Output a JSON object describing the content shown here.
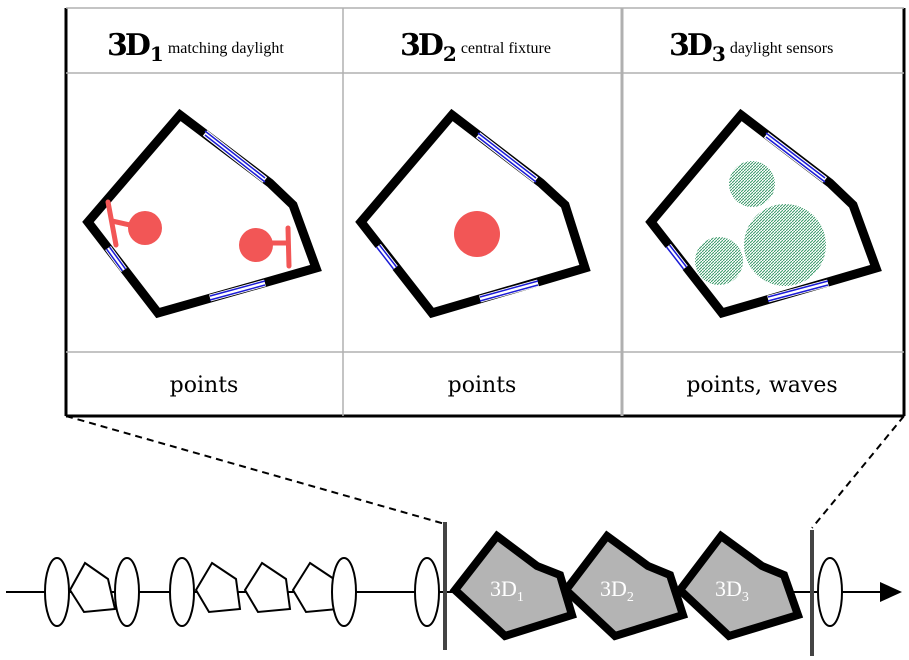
{
  "columns": [
    {
      "id": "3d1",
      "big": "3D",
      "sub": "1",
      "desc": "matching daylight",
      "footer": "points"
    },
    {
      "id": "3d2",
      "big": "3D",
      "sub": "2",
      "desc": "central fixture",
      "footer": "points"
    },
    {
      "id": "3d3",
      "big": "3D",
      "sub": "3",
      "desc": "daylight sensors",
      "footer": "points, waves"
    }
  ],
  "timeline_rooms": [
    {
      "base": "3D",
      "sub": "1"
    },
    {
      "base": "3D",
      "sub": "2"
    },
    {
      "base": "3D",
      "sub": "3"
    }
  ],
  "colors": {
    "wall": "#000000",
    "window": "#1a1ad6",
    "lamp": "#f25656",
    "sensor": "#3a9a6a",
    "room_fill": "#b4b4b4",
    "grid": "#b0b0b0"
  }
}
